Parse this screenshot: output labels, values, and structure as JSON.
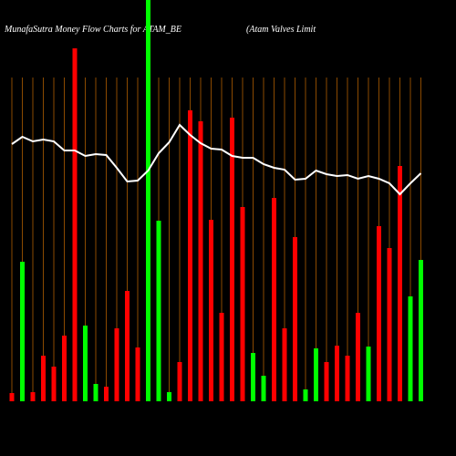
{
  "chart_data": {
    "type": "bar",
    "title": "MunafaSutra  Money Flow  Charts for ATAM_BE",
    "subtitle": "(Atam Valves Limit",
    "categories": [
      null,
      null,
      null,
      null,
      null,
      null,
      null,
      null,
      null,
      null,
      null,
      null,
      null,
      null,
      null,
      null,
      null,
      null,
      null,
      null,
      null,
      null,
      null,
      null,
      null,
      null,
      null,
      null,
      null,
      null,
      null,
      null,
      null,
      null,
      null,
      null,
      null,
      null,
      null,
      null
    ],
    "values": [
      9,
      153,
      10,
      50,
      38,
      72,
      387,
      83,
      19,
      16,
      80,
      121,
      59,
      440,
      198,
      10,
      43,
      319,
      307,
      199,
      97,
      311,
      213,
      53,
      28,
      223,
      80,
      180,
      13,
      58,
      43,
      61,
      50,
      97,
      60,
      192,
      168,
      258,
      115,
      155
    ],
    "colors": [
      "#ff0000",
      "#00ff00",
      "#ff0000",
      "#ff0000",
      "#ff0000",
      "#ff0000",
      "#ff0000",
      "#00ff00",
      "#00ff00",
      "#ff0000",
      "#ff0000",
      "#ff0000",
      "#ff0000",
      "#00ff00",
      "#00ff00",
      "#00ff00",
      "#ff0000",
      "#ff0000",
      "#ff0000",
      "#ff0000",
      "#ff0000",
      "#ff0000",
      "#ff0000",
      "#00ff00",
      "#00ff00",
      "#ff0000",
      "#ff0000",
      "#ff0000",
      "#00ff00",
      "#00ff00",
      "#ff0000",
      "#ff0000",
      "#ff0000",
      "#ff0000",
      "#00ff00",
      "#ff0000",
      "#ff0000",
      "#ff0000",
      "#00ff00",
      "#00ff00"
    ],
    "line": {
      "color": "#ffffff",
      "values": [
        282,
        290,
        285,
        287,
        285,
        275,
        275,
        269,
        271,
        270,
        256,
        241,
        242,
        253,
        272,
        284,
        303,
        292,
        283,
        277,
        276,
        269,
        267,
        267,
        260,
        256,
        254,
        243,
        244,
        253,
        249,
        247,
        248,
        244,
        247,
        244,
        239,
        227,
        239,
        250
      ]
    },
    "ylim": [
      0,
      440
    ],
    "grid": true,
    "grid_color": "#8b4a00",
    "background": "#000000"
  }
}
